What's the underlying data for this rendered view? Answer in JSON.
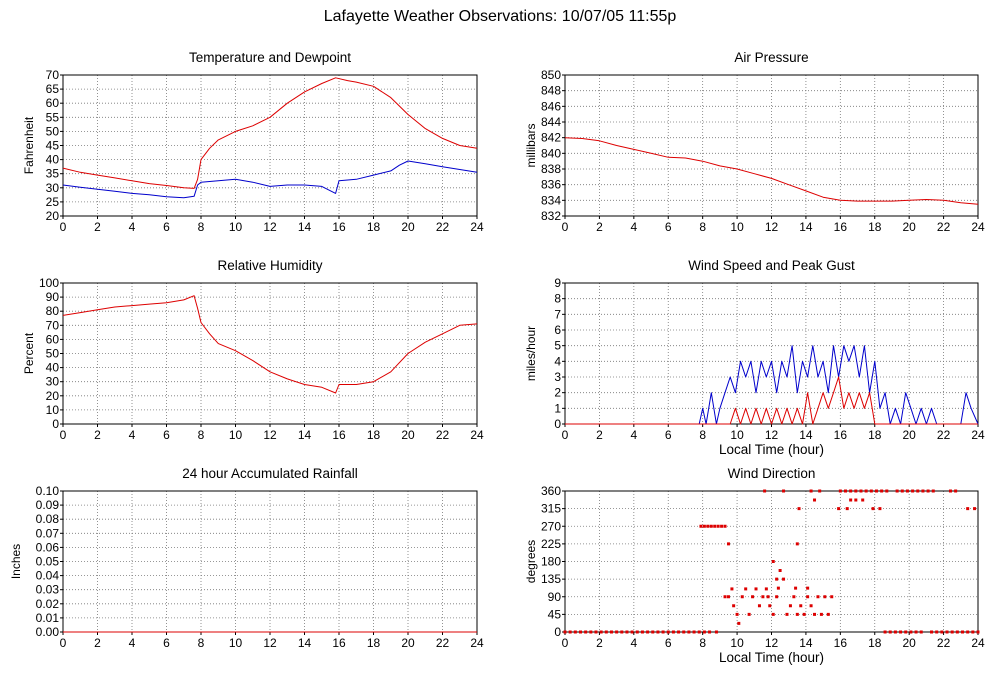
{
  "page": {
    "title": "Lafayette Weather Observations: 10/07/05 11:55p"
  },
  "colors": {
    "red": "#dd0000",
    "blue": "#0000cc",
    "grid": "#777777",
    "axis": "#000000"
  },
  "chart_data": [
    {
      "id": "temp",
      "type": "line",
      "title": "Temperature and Dewpoint",
      "ylabel": "Fahrenheit",
      "xlabel": "",
      "xlim": [
        0,
        24
      ],
      "ylim": [
        20,
        70
      ],
      "xticks": [
        0,
        2,
        4,
        6,
        8,
        10,
        12,
        14,
        16,
        18,
        20,
        22,
        24
      ],
      "yticks": [
        20,
        25,
        30,
        35,
        40,
        45,
        50,
        55,
        60,
        65,
        70
      ],
      "grid": true,
      "series": [
        {
          "color": "#dd0000",
          "style": "line",
          "x": [
            0,
            1,
            2,
            3,
            4,
            5,
            6,
            7,
            7.6,
            7.8,
            8,
            8.5,
            9,
            10,
            11,
            12,
            13,
            14,
            15,
            15.8,
            16.5,
            17,
            18,
            19,
            20,
            21,
            22,
            23,
            24
          ],
          "y": [
            37,
            35.5,
            34.5,
            33.5,
            32.5,
            31.5,
            30.8,
            30,
            29.8,
            33,
            40,
            44,
            47,
            50,
            52,
            55,
            60,
            64,
            67,
            69,
            68,
            67.5,
            66,
            62,
            56,
            51,
            47.5,
            45,
            44
          ]
        },
        {
          "color": "#0000cc",
          "style": "line",
          "x": [
            0,
            1,
            2,
            3,
            4,
            5,
            6,
            7,
            7.6,
            7.8,
            8,
            9,
            10,
            11,
            12,
            13,
            14,
            15,
            15.8,
            16,
            17,
            18,
            19,
            19.5,
            20,
            21,
            22,
            23,
            24
          ],
          "y": [
            31,
            30.2,
            29.5,
            28.8,
            28,
            27.5,
            26.8,
            26.5,
            27,
            31,
            32,
            32.5,
            33,
            32,
            30.5,
            31,
            31,
            30.5,
            28,
            32.5,
            33,
            34.5,
            36,
            38,
            39.5,
            38.5,
            37.5,
            36.5,
            35.5
          ]
        }
      ]
    },
    {
      "id": "pressure",
      "type": "line",
      "title": "Air Pressure",
      "ylabel": "millibars",
      "xlabel": "",
      "xlim": [
        0,
        24
      ],
      "ylim": [
        832,
        850
      ],
      "xticks": [
        0,
        2,
        4,
        6,
        8,
        10,
        12,
        14,
        16,
        18,
        20,
        22,
        24
      ],
      "yticks": [
        832,
        834,
        836,
        838,
        840,
        842,
        844,
        846,
        848,
        850
      ],
      "grid": true,
      "series": [
        {
          "color": "#dd0000",
          "style": "line",
          "x": [
            0,
            1,
            2,
            3,
            4,
            5,
            6,
            7,
            8,
            9,
            10,
            11,
            12,
            13,
            14,
            15,
            16,
            17,
            18,
            19,
            20,
            21,
            22,
            23,
            24
          ],
          "y": [
            842,
            841.9,
            841.6,
            841,
            840.5,
            840,
            839.5,
            839.4,
            839,
            838.4,
            838,
            837.4,
            836.8,
            836,
            835.2,
            834.4,
            834,
            833.9,
            833.9,
            833.9,
            834,
            834.1,
            834,
            833.7,
            833.5
          ]
        }
      ]
    },
    {
      "id": "humidity",
      "type": "line",
      "title": "Relative Humidity",
      "ylabel": "Percent",
      "xlabel": "",
      "xlim": [
        0,
        24
      ],
      "ylim": [
        0,
        100
      ],
      "xticks": [
        0,
        2,
        4,
        6,
        8,
        10,
        12,
        14,
        16,
        18,
        20,
        22,
        24
      ],
      "yticks": [
        0,
        10,
        20,
        30,
        40,
        50,
        60,
        70,
        80,
        90,
        100
      ],
      "grid": true,
      "series": [
        {
          "color": "#dd0000",
          "style": "line",
          "x": [
            0,
            1,
            2,
            3,
            4,
            5,
            6,
            7,
            7.6,
            7.8,
            8,
            8.5,
            9,
            10,
            11,
            12,
            13,
            14,
            15,
            15.8,
            16,
            17,
            18,
            19,
            20,
            21,
            22,
            23,
            24
          ],
          "y": [
            77,
            79,
            81,
            83,
            84,
            85,
            86,
            88,
            91,
            82,
            72,
            64,
            57,
            52,
            45,
            37,
            32,
            28,
            26,
            22,
            28,
            28,
            30,
            37,
            50,
            58,
            64,
            70,
            71
          ]
        }
      ]
    },
    {
      "id": "wind",
      "type": "line",
      "title": "Wind Speed and Peak Gust",
      "ylabel": "miles/hour",
      "xlabel": "Local Time (hour)",
      "xlim": [
        0,
        24
      ],
      "ylim": [
        0,
        9
      ],
      "xticks": [
        0,
        2,
        4,
        6,
        8,
        10,
        12,
        14,
        16,
        18,
        20,
        22,
        24
      ],
      "yticks": [
        0,
        1,
        2,
        3,
        4,
        5,
        6,
        7,
        8,
        9
      ],
      "grid": true,
      "series": [
        {
          "color": "#0000cc",
          "style": "line",
          "x": [
            0,
            7.8,
            8,
            8.2,
            8.5,
            8.8,
            9,
            9.3,
            9.6,
            9.9,
            10.2,
            10.5,
            10.8,
            11.1,
            11.4,
            11.7,
            12,
            12.3,
            12.6,
            12.9,
            13.2,
            13.5,
            13.8,
            14.1,
            14.4,
            14.7,
            15,
            15.3,
            15.6,
            15.9,
            16.2,
            16.5,
            16.8,
            17.1,
            17.4,
            17.7,
            18,
            18.3,
            18.6,
            18.9,
            19.2,
            19.5,
            19.8,
            20.1,
            20.4,
            20.7,
            21,
            21.3,
            21.6,
            22,
            22.5,
            23,
            23.3,
            23.6,
            24
          ],
          "y": [
            0,
            0,
            1,
            0,
            2,
            0,
            1,
            2,
            3,
            2,
            4,
            3,
            4,
            2,
            4,
            3,
            4,
            2,
            4,
            3,
            5,
            2,
            4,
            3,
            5,
            3,
            4,
            2,
            5,
            3,
            5,
            4,
            5,
            3,
            5,
            2,
            4,
            1,
            2,
            0,
            1,
            0,
            2,
            1,
            0,
            1,
            0,
            1,
            0,
            0,
            0,
            0,
            2,
            1,
            0
          ]
        },
        {
          "color": "#dd0000",
          "style": "line",
          "x": [
            0,
            9.6,
            9.9,
            10.2,
            10.5,
            10.8,
            11.1,
            11.4,
            11.7,
            12,
            12.3,
            12.6,
            12.9,
            13.2,
            13.5,
            13.8,
            14.1,
            14.4,
            14.7,
            15,
            15.3,
            15.6,
            15.9,
            16.2,
            16.5,
            16.8,
            17.1,
            17.4,
            17.7,
            18,
            24
          ],
          "y": [
            0,
            0,
            1,
            0,
            1,
            0,
            1,
            0,
            1,
            0,
            1,
            0,
            1,
            0,
            1,
            0,
            2,
            0,
            1,
            2,
            1,
            2,
            3,
            1,
            2,
            1,
            2,
            1,
            2,
            0,
            0
          ]
        }
      ]
    },
    {
      "id": "rain",
      "type": "line",
      "title": "24 hour Accumulated Rainfall",
      "ylabel": "Inches",
      "xlabel": "",
      "xlim": [
        0,
        24
      ],
      "ylim": [
        0,
        0.1
      ],
      "xticks": [
        0,
        2,
        4,
        6,
        8,
        10,
        12,
        14,
        16,
        18,
        20,
        22,
        24
      ],
      "yticks": [
        0,
        0.01,
        0.02,
        0.03,
        0.04,
        0.05,
        0.06,
        0.07,
        0.08,
        0.09,
        0.1
      ],
      "yticklabels": [
        "0.00",
        "0.01",
        "0.02",
        "0.03",
        "0.04",
        "0.05",
        "0.06",
        "0.07",
        "0.08",
        "0.09",
        "0.10"
      ],
      "grid": true,
      "series": [
        {
          "color": "#dd0000",
          "style": "line",
          "x": [
            0,
            24
          ],
          "y": [
            0,
            0
          ]
        }
      ]
    },
    {
      "id": "direction",
      "type": "scatter",
      "title": "Wind Direction",
      "ylabel": "degrees",
      "xlabel": "Local Time (hour)",
      "xlim": [
        0,
        24
      ],
      "ylim": [
        0,
        360
      ],
      "xticks": [
        0,
        2,
        4,
        6,
        8,
        10,
        12,
        14,
        16,
        18,
        20,
        22,
        24
      ],
      "yticks": [
        0,
        45,
        90,
        135,
        180,
        225,
        270,
        315,
        360
      ],
      "grid": true,
      "series": [
        {
          "color": "#dd0000",
          "style": "points",
          "x": [
            0,
            0.3,
            0.6,
            0.9,
            1.2,
            1.5,
            1.8,
            2.1,
            2.4,
            2.7,
            3,
            3.3,
            3.6,
            3.9,
            4.2,
            4.5,
            4.8,
            5.1,
            5.4,
            5.7,
            6,
            6.3,
            6.6,
            6.9,
            7.2,
            7.5,
            7.8,
            8.1,
            8.4,
            8.8,
            7.9,
            8.1,
            8.3,
            8.5,
            8.7,
            8.9,
            9.1,
            9.3,
            9.5,
            9.3,
            9.5,
            9.7,
            9.8,
            10,
            10.1,
            10.3,
            10.5,
            10.7,
            10.9,
            11.1,
            11.3,
            11.5,
            11.7,
            11.9,
            12.1,
            12.3,
            12.5,
            12.7,
            12.9,
            13.1,
            13.3,
            13.5,
            13.7,
            13.9,
            14.1,
            14.3,
            14.5,
            14.7,
            14.9,
            15.1,
            15.3,
            15.5,
            12.1,
            12.3,
            12.4,
            13.4,
            14.1,
            11.8,
            13.6,
            13.5,
            11.6,
            12.7,
            14.3,
            14.8,
            16,
            16.3,
            16.6,
            16.9,
            17.2,
            17.5,
            17.8,
            18.1,
            18.4,
            18.7,
            19.3,
            19.6,
            19.9,
            20.2,
            20.5,
            20.8,
            21.1,
            21.4,
            22.4,
            22.7,
            14.5,
            16.6,
            16.9,
            17.3,
            15.9,
            16.4,
            17.9,
            18.3,
            23.4,
            23.8,
            18.6,
            18.9,
            19.2,
            19.5,
            19.8,
            20.1,
            20.4,
            20.7,
            21.3,
            21.6,
            21.9,
            22.2,
            22.5,
            22.8,
            23.1,
            23.4,
            23.7,
            24
          ],
          "y": [
            0,
            0,
            0,
            0,
            0,
            0,
            0,
            0,
            0,
            0,
            0,
            0,
            0,
            0,
            0,
            0,
            0,
            0,
            0,
            0,
            0,
            0,
            0,
            0,
            0,
            0,
            0,
            0,
            0,
            0,
            270,
            270,
            270,
            270,
            270,
            270,
            270,
            270,
            225,
            90,
            90,
            110,
            67,
            45,
            22,
            90,
            110,
            45,
            90,
            110,
            67,
            90,
            110,
            67,
            45,
            90,
            157,
            135,
            45,
            67,
            90,
            45,
            67,
            45,
            90,
            67,
            45,
            90,
            45,
            90,
            45,
            90,
            180,
            135,
            112,
            112,
            112,
            90,
            315,
            225,
            360,
            360,
            360,
            360,
            360,
            360,
            360,
            360,
            360,
            360,
            360,
            360,
            360,
            360,
            360,
            360,
            360,
            360,
            360,
            360,
            360,
            360,
            360,
            360,
            337,
            337,
            337,
            337,
            315,
            315,
            315,
            315,
            315,
            315,
            0,
            0,
            0,
            0,
            0,
            0,
            0,
            0,
            0,
            0,
            0,
            0,
            0,
            0,
            0,
            0,
            0,
            0
          ]
        }
      ]
    }
  ]
}
